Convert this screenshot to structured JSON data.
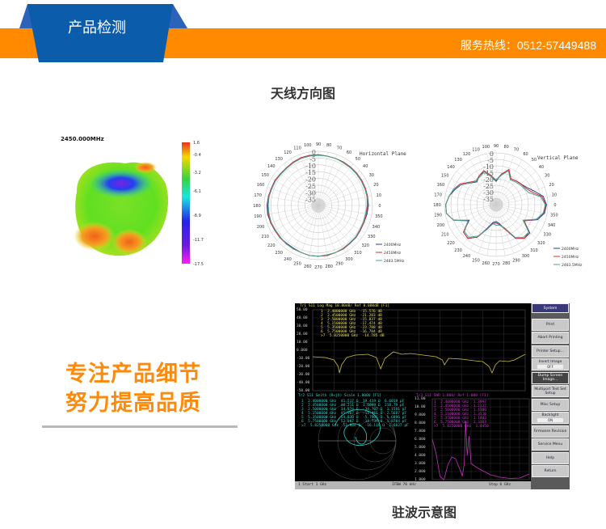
{
  "header": {
    "title": "产品检测",
    "hotline": "服务热线：0512-57449488",
    "colors": {
      "band": "#ff8a00",
      "tab": "#0b5cab"
    }
  },
  "section_title": "天线方向图",
  "pattern_3d": {
    "title": "2450.000MHz",
    "colorbar_labels": [
      "1.6",
      "-0.4",
      "-3.2",
      "-6.1",
      "-8.9",
      "-11.7",
      "-17.5"
    ]
  },
  "chart_data": [
    {
      "type": "polar",
      "title": "Horizontal Plane",
      "radial_ticks": [
        "0",
        "-5",
        "-10",
        "-15",
        "-20",
        "-25",
        "-30",
        "-35"
      ],
      "rlim": [
        -40,
        0
      ],
      "angle_ticks_deg": [
        0,
        10,
        20,
        30,
        40,
        50,
        60,
        70,
        80,
        90,
        100,
        110,
        120,
        130,
        140,
        150,
        160,
        170,
        180,
        190,
        200,
        210,
        220,
        230,
        240,
        250,
        260,
        270,
        280,
        290,
        300,
        310,
        320,
        330,
        340,
        350
      ],
      "legend_position": "bottom-right",
      "series": [
        {
          "name": "2400MHz",
          "color": "#2f3f8f",
          "values": [
            -3,
            -3,
            -3,
            -3,
            -3,
            -3,
            -3,
            -3,
            -3,
            -2.5,
            -2.5,
            -2.5,
            -3,
            -3.5,
            -3.5,
            -3,
            -3,
            -2.5,
            -2,
            -2,
            -2.5,
            -3,
            -3,
            -3.5,
            -3.5,
            -3,
            -2.5,
            -2.5,
            -2.5,
            -3,
            -3,
            -3.5,
            -3.5,
            -4,
            -4,
            -3.5
          ]
        },
        {
          "name": "2450MHz",
          "color": "#d0303a",
          "values": [
            -3.5,
            -3,
            -3,
            -3,
            -3,
            -3,
            -3,
            -3,
            -3,
            -2.5,
            -2.5,
            -2.5,
            -3,
            -3.5,
            -3.5,
            -3,
            -3,
            -2.5,
            -2.5,
            -2.5,
            -2.5,
            -3,
            -3,
            -3,
            -3,
            -3,
            -2.5,
            -2.5,
            -2.5,
            -3,
            -3,
            -3.5,
            -3.5,
            -4,
            -4,
            -4
          ]
        },
        {
          "name": "2483.5MHz",
          "color": "#4aa58a",
          "values": [
            -4,
            -3.5,
            -3.5,
            -3.5,
            -3.5,
            -3.5,
            -3.5,
            -3,
            -3,
            -3,
            -3,
            -3,
            -3.5,
            -4,
            -4,
            -3.5,
            -3.5,
            -3,
            -3,
            -3,
            -3,
            -3.5,
            -3.5,
            -3,
            -3,
            -3,
            -2.5,
            -2.5,
            -3,
            -3,
            -3.5,
            -4,
            -4,
            -4.5,
            -4.5,
            -4.5
          ]
        }
      ]
    },
    {
      "type": "polar",
      "title": "Vertical Plane",
      "radial_ticks": [
        "0",
        "-5",
        "-10",
        "-15",
        "-20",
        "-25",
        "-30",
        "-35"
      ],
      "rlim": [
        -40,
        0
      ],
      "angle_ticks_deg": [
        0,
        10,
        20,
        30,
        40,
        50,
        60,
        70,
        80,
        90,
        100,
        110,
        120,
        130,
        140,
        150,
        160,
        170,
        180,
        190,
        200,
        210,
        220,
        230,
        240,
        250,
        260,
        270,
        280,
        290,
        300,
        310,
        320,
        330,
        340,
        350
      ],
      "legend_position": "bottom-right",
      "series": [
        {
          "name": "2400MHz",
          "color": "#2f3f8f",
          "values": [
            -1,
            -3,
            -9,
            -13,
            -15,
            -16,
            -17,
            -12,
            -16,
            -22,
            -18,
            -13,
            -14,
            -17,
            -14,
            -9,
            -6,
            -3,
            -1,
            -1,
            -5,
            -16,
            -7,
            -6,
            -11,
            -21,
            -26,
            -27,
            -25,
            -20,
            -10,
            -6,
            -6,
            -15,
            -6,
            -2
          ]
        },
        {
          "name": "2450MHz",
          "color": "#d0303a",
          "values": [
            -1.5,
            -4,
            -11,
            -14,
            -15,
            -16,
            -17,
            -11,
            -16,
            -21,
            -17,
            -12,
            -14,
            -16,
            -13,
            -8,
            -5,
            -3,
            -1,
            -1,
            -5,
            -15,
            -7,
            -6,
            -11,
            -20,
            -25,
            -26,
            -24,
            -20,
            -10,
            -6,
            -7,
            -15,
            -7,
            -2.5
          ]
        },
        {
          "name": "2483.5MHz",
          "color": "#4aa58a",
          "values": [
            -2,
            -5,
            -13,
            -15,
            -16,
            -17,
            -18,
            -12,
            -17,
            -21,
            -18,
            -13,
            -15,
            -16,
            -14,
            -9,
            -5,
            -3,
            -1,
            -1,
            -5,
            -15,
            -8,
            -7,
            -12,
            -20,
            -25,
            -24,
            -24,
            -21,
            -11,
            -7,
            -7,
            -16,
            -7,
            -3
          ]
        }
      ]
    }
  ],
  "slogan": {
    "line1": "专注产品细节",
    "line2": "努力提高品质"
  },
  "vna": {
    "top_trace": {
      "header": "Tr1 S11 Log Mag 10.00dB/ Ref 0.000dB [F1]",
      "y_labels": [
        "50.00",
        "40.00",
        "30.00",
        "20.00",
        "10.00",
        "0.000",
        "-10.00",
        "-20.00",
        "-30.00",
        "-40.00",
        "-50.00"
      ],
      "markers": [
        "1  2.4000000 GHz  -15.576 dB",
        "2  2.4500000 GHz  -21.203 dB",
        "3  2.5000000 GHz  -15.837 dB",
        "4  5.1500000 GHz  -17.474 dB",
        "5  5.3500000 GHz  -23.788 dB",
        "6  5.7500000 GHz  -16.784 dB",
        ">7  5.8250000 GHz  -14.785 dB"
      ],
      "points": [
        [
          1.0,
          -8
        ],
        [
          1.3,
          -9
        ],
        [
          1.5,
          -12
        ],
        [
          1.6,
          -20
        ],
        [
          1.63,
          -28
        ],
        [
          1.68,
          -18
        ],
        [
          1.8,
          -9
        ],
        [
          2.0,
          -6
        ],
        [
          2.3,
          -5
        ],
        [
          2.5,
          -9
        ],
        [
          2.6,
          -23
        ],
        [
          2.7,
          -10
        ],
        [
          2.9,
          -2
        ],
        [
          3.1,
          -5
        ],
        [
          3.3,
          -4
        ],
        [
          3.6,
          -6
        ],
        [
          3.9,
          -8
        ],
        [
          4.05,
          -12
        ],
        [
          4.1,
          -18
        ],
        [
          4.2,
          -10
        ],
        [
          4.5,
          -11
        ],
        [
          4.8,
          -13
        ],
        [
          5.0,
          -14
        ],
        [
          5.15,
          -20
        ],
        [
          5.22,
          -28
        ],
        [
          5.3,
          -18
        ],
        [
          5.4,
          -13
        ],
        [
          5.6,
          -14
        ],
        [
          5.75,
          -12
        ],
        [
          5.85,
          -9
        ],
        [
          6.0,
          -5
        ]
      ]
    },
    "smith": {
      "header": "Tr2 S11 Smith (R+jX) Scale 1.000U [F1]",
      "markers": [
        "1  2.4000000 GHz  41.517 Ω  19.419 Ω  6.6019 pF",
        "2  2.4500000 GHz  46.211 Ω  1.6099 Ω  218.79 pF",
        "3  2.5000000 GHz  34.874 Ω  -34.707 Ω  1.1591 pF",
        "4  5.1500000 GHz  45.967 Ω  -13.461 Ω  2.5687 pF",
        "5  5.3500000 GHz  54.810 Ω  -5.7965 Ω  5.6896 pF",
        "6  5.7500000 GHz  52.087 Ω  -14.736 Ω  1.8784 pF",
        ">7  5.8250000 GHz  53.884 Ω  -16.119 Ω  1.6827 pF"
      ]
    },
    "swr": {
      "header": "Tr3 S11 SWR 1.000/ Ref 1.000 [F1]",
      "y_labels": [
        "11.00",
        "10.00",
        "9.000",
        "8.000",
        "7.000",
        "6.000",
        "5.000",
        "4.000",
        "3.000",
        "2.000",
        "1.000"
      ],
      "markers": [
        "1  2.4000000 GHz  1.3997",
        "2  2.4500000 GHz  1.2127",
        "3  2.5000000 GHz  1.4300",
        "4  5.1500000 GHz  1.3110",
        "5  5.3500000 GHz  1.1403",
        "6  5.7500000 GHz  1.3383",
        ">7  5.8250000 GHz  1.4450"
      ],
      "points": [
        [
          1.0,
          6
        ],
        [
          1.2,
          4.2
        ],
        [
          1.4,
          1.4
        ],
        [
          1.6,
          1.0
        ],
        [
          1.8,
          2.8
        ],
        [
          2.0,
          3.8
        ],
        [
          2.2,
          3.6
        ],
        [
          2.4,
          2.4
        ],
        [
          2.55,
          1.5
        ],
        [
          2.65,
          3
        ],
        [
          2.72,
          8.2
        ],
        [
          2.8,
          4
        ],
        [
          2.9,
          6.4
        ],
        [
          3.0,
          3
        ],
        [
          3.3,
          2.5
        ],
        [
          3.6,
          2.1
        ],
        [
          4.0,
          1.6
        ],
        [
          4.5,
          1.3
        ],
        [
          5.0,
          1.15
        ],
        [
          5.5,
          1.2
        ],
        [
          5.8,
          1.5
        ],
        [
          6.0,
          1.7
        ]
      ]
    },
    "status": {
      "start": "1  Start 1 GHz",
      "ifbw": "IFBW 70 kHz",
      "stop": "Stop 6 GHz"
    },
    "softkeys": [
      {
        "label": "System"
      },
      {
        "label": "Print"
      },
      {
        "label": "Abort Printing"
      },
      {
        "label": "Printer Setup..."
      },
      {
        "label": "Invert Image",
        "state": "OFF"
      },
      {
        "label": "Dump Screen Image..."
      },
      {
        "label": "Multiport Test Set Setup"
      },
      {
        "label": "Misc Setup"
      },
      {
        "label": "Backlight",
        "state": "ON"
      },
      {
        "label": "Firmware Revision"
      },
      {
        "label": "Service Menu"
      },
      {
        "label": "Help"
      },
      {
        "label": "Return"
      }
    ]
  },
  "caption": "驻波示意图"
}
